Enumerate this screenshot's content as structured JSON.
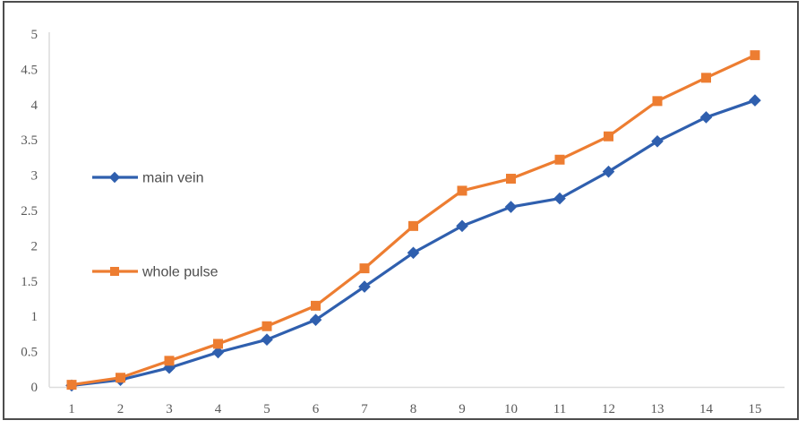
{
  "window": {
    "background": "#ffffff",
    "border_color": "#4d4d4d"
  },
  "chart_data": {
    "type": "line",
    "title": "",
    "xlabel": "",
    "ylabel": "",
    "x": [
      1,
      2,
      3,
      4,
      5,
      6,
      7,
      8,
      9,
      10,
      11,
      12,
      13,
      14,
      15
    ],
    "xticks": [
      "1",
      "2",
      "3",
      "4",
      "5",
      "6",
      "7",
      "8",
      "9",
      "10",
      "11",
      "12",
      "13",
      "14",
      "15"
    ],
    "yticks": [
      "0",
      "0.5",
      "1",
      "1.5",
      "2",
      "2.5",
      "3",
      "3.5",
      "4",
      "4.5",
      "5"
    ],
    "ylim": [
      0,
      5
    ],
    "xlim": [
      1,
      15
    ],
    "grid": false,
    "background": "#ffffff",
    "axis_line_color": "#dcdcdc",
    "tick_label_color": "#595959",
    "legend": {
      "position": "floating-inside-left",
      "items": [
        "main vein",
        "whole pulse"
      ]
    },
    "series": [
      {
        "name": "main vein",
        "color": "#2F5FAE",
        "marker": "diamond",
        "values": [
          0.02,
          0.1,
          0.27,
          0.49,
          0.67,
          0.95,
          1.42,
          1.9,
          2.28,
          2.55,
          2.67,
          3.05,
          3.48,
          3.82,
          4.06
        ]
      },
      {
        "name": "whole pulse",
        "color": "#ED7D31",
        "marker": "square",
        "values": [
          0.03,
          0.13,
          0.37,
          0.61,
          0.86,
          1.15,
          1.68,
          2.28,
          2.78,
          2.95,
          3.22,
          3.55,
          4.05,
          4.38,
          4.7
        ]
      }
    ]
  }
}
